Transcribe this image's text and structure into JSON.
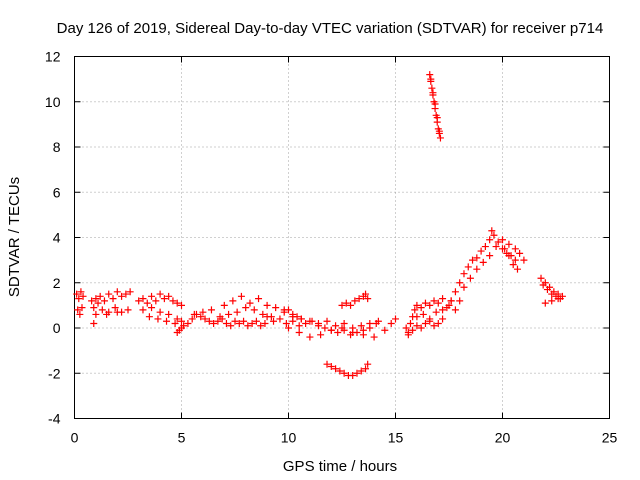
{
  "chart_data": {
    "type": "scatter",
    "title": "Day 126 of 2019, Sidereal Day-to-day VTEC variation (SDTVAR) for receiver p714",
    "xlabel": "GPS time / hours",
    "ylabel": "SDTVAR / TECUs",
    "xlim": [
      0,
      25
    ],
    "ylim": [
      -4,
      12
    ],
    "xticks": [
      "0",
      "5",
      "10",
      "15",
      "20",
      "25"
    ],
    "yticks": [
      "-4",
      "-2",
      "0",
      "2",
      "4",
      "6",
      "8",
      "10",
      "12"
    ],
    "grid": true,
    "marker": "plus",
    "color": "#ff0000",
    "series": [
      {
        "name": "SDTVAR",
        "x": [
          0.1,
          0.2,
          0.3,
          0.4,
          0.15,
          0.25,
          0.35,
          0.8,
          0.9,
          1.0,
          1.1,
          1.2,
          1.4,
          1.6,
          1.8,
          2.0,
          2.2,
          2.4,
          2.6,
          1.0,
          1.3,
          1.6,
          1.9,
          2.2,
          2.5,
          0.9,
          1.5,
          2.0,
          3.0,
          3.2,
          3.4,
          3.6,
          3.8,
          4.0,
          4.2,
          4.4,
          4.6,
          4.8,
          5.0,
          3.2,
          3.6,
          4.0,
          4.4,
          4.8,
          3.5,
          3.9,
          4.3,
          4.7,
          5.0,
          4.8,
          4.9,
          5.0,
          5.1,
          5.3,
          5.5,
          5.7,
          5.9,
          6.1,
          6.3,
          6.5,
          6.7,
          6.9,
          7.1,
          7.3,
          7.5,
          7.7,
          7.9,
          8.1,
          8.3,
          8.5,
          8.7,
          8.9,
          5.6,
          6.0,
          6.4,
          6.8,
          7.2,
          7.6,
          8.0,
          8.4,
          8.8,
          9.2,
          7.0,
          7.4,
          7.8,
          8.2,
          8.6,
          9.0,
          9.4,
          9.8,
          10.2,
          10.6,
          11.0,
          11.4,
          11.8,
          12.2,
          12.6,
          13.0,
          13.4,
          13.8,
          14.2,
          9.0,
          9.3,
          9.6,
          9.9,
          10.2,
          10.5,
          10.8,
          11.1,
          11.4,
          11.7,
          12.0,
          12.3,
          12.6,
          12.9,
          13.2,
          13.5,
          13.8,
          14.1,
          10.0,
          10.5,
          11.0,
          11.5,
          12.0,
          12.5,
          13.0,
          13.5,
          14.0,
          14.5,
          14.8,
          15.0,
          9.8,
          10.0,
          10.2,
          10.4,
          10.6,
          12.5,
          12.7,
          12.9,
          13.1,
          13.3,
          13.5,
          13.6,
          13.7,
          11.8,
          12.0,
          12.2,
          12.4,
          12.6,
          12.8,
          13.0,
          13.2,
          13.4,
          13.6,
          13.7,
          15.5,
          15.6,
          15.7,
          15.8,
          15.9,
          16.0,
          16.2,
          16.4,
          16.6,
          16.8,
          17.0,
          17.2,
          15.6,
          15.8,
          16.0,
          16.2,
          16.4,
          16.6,
          16.8,
          17.0,
          17.2,
          16.0,
          16.3,
          16.6,
          16.9,
          17.2,
          17.4,
          17.5,
          17.6,
          16.6,
          16.65,
          16.7,
          16.75,
          16.8,
          16.85,
          16.9,
          16.95,
          17.0,
          17.05,
          17.1,
          16.65,
          16.75,
          16.85,
          16.95,
          17.05,
          17.6,
          17.8,
          18.0,
          18.2,
          18.4,
          18.6,
          18.8,
          19.0,
          19.2,
          19.4,
          19.5,
          19.6,
          19.8,
          20.0,
          20.2,
          20.4,
          20.6,
          17.8,
          18.0,
          18.2,
          18.5,
          18.8,
          19.1,
          19.4,
          19.7,
          20.0,
          20.3,
          20.6,
          20.8,
          21.0,
          20.5,
          20.7,
          20.1,
          20.3,
          21.8,
          22.0,
          22.2,
          22.4,
          22.6,
          22.8,
          21.9,
          22.1,
          22.3,
          22.5,
          22.7,
          22.0,
          22.3,
          22.6
        ],
        "y": [
          1.5,
          1.3,
          1.6,
          1.4,
          0.8,
          0.6,
          0.9,
          1.2,
          0.9,
          1.3,
          1.1,
          1.4,
          1.2,
          1.5,
          1.3,
          1.6,
          1.4,
          1.5,
          1.6,
          0.6,
          0.8,
          0.7,
          0.9,
          0.7,
          0.8,
          0.2,
          0.6,
          0.7,
          1.2,
          1.3,
          1.1,
          1.4,
          1.2,
          1.5,
          1.3,
          1.4,
          1.2,
          1.1,
          1.0,
          0.8,
          0.9,
          0.7,
          0.6,
          0.4,
          0.5,
          0.4,
          0.3,
          0.2,
          0.0,
          -0.2,
          -0.1,
          0.3,
          0.1,
          0.2,
          0.4,
          0.6,
          0.5,
          0.4,
          0.3,
          0.2,
          0.3,
          0.4,
          0.2,
          0.1,
          0.3,
          0.2,
          0.3,
          0.1,
          0.2,
          0.3,
          0.1,
          0.2,
          0.6,
          0.7,
          0.8,
          0.5,
          0.6,
          0.7,
          0.9,
          0.8,
          0.6,
          0.5,
          1.0,
          1.2,
          1.4,
          1.1,
          1.3,
          1.0,
          0.9,
          0.8,
          0.5,
          0.4,
          0.3,
          0.2,
          0.3,
          0.1,
          0.2,
          0.0,
          0.1,
          0.2,
          0.3,
          0.5,
          0.3,
          0.4,
          0.2,
          0.3,
          0.1,
          0.2,
          0.3,
          0.1,
          0.0,
          -0.1,
          -0.2,
          -0.1,
          -0.3,
          -0.2,
          -0.1,
          0.0,
          0.2,
          0.0,
          -0.2,
          -0.4,
          -0.3,
          -0.1,
          0.0,
          -0.2,
          -0.3,
          -0.4,
          -0.1,
          0.2,
          0.4,
          0.7,
          0.8,
          0.6,
          0.5,
          0.4,
          1.0,
          1.1,
          1.0,
          1.2,
          1.3,
          1.4,
          1.5,
          1.3,
          -1.6,
          -1.7,
          -1.8,
          -1.9,
          -2.0,
          -2.1,
          -2.1,
          -2.0,
          -1.9,
          -1.8,
          -1.6,
          0.0,
          -0.3,
          0.2,
          0.5,
          0.8,
          1.0,
          0.9,
          1.1,
          1.0,
          1.2,
          1.1,
          1.3,
          -0.2,
          -0.1,
          0.1,
          0.0,
          0.2,
          0.3,
          0.1,
          0.2,
          0.4,
          0.5,
          0.6,
          0.4,
          0.7,
          0.8,
          0.9,
          1.0,
          1.2,
          11.2,
          10.9,
          10.6,
          10.3,
          10.0,
          9.7,
          9.4,
          9.1,
          8.8,
          8.6,
          8.4,
          11.0,
          10.4,
          9.9,
          9.3,
          8.7,
          1.2,
          1.6,
          2.0,
          2.4,
          2.7,
          3.0,
          3.1,
          3.4,
          3.6,
          3.9,
          4.3,
          4.1,
          3.8,
          3.5,
          3.3,
          3.2,
          3.0,
          0.8,
          1.2,
          1.8,
          2.2,
          2.6,
          2.9,
          3.2,
          3.6,
          3.9,
          3.7,
          3.5,
          3.3,
          3.0,
          2.8,
          2.6,
          3.5,
          3.2,
          2.2,
          2.0,
          1.8,
          1.6,
          1.5,
          1.4,
          1.9,
          1.7,
          1.5,
          1.4,
          1.3,
          1.1,
          1.2,
          1.3
        ]
      }
    ]
  }
}
